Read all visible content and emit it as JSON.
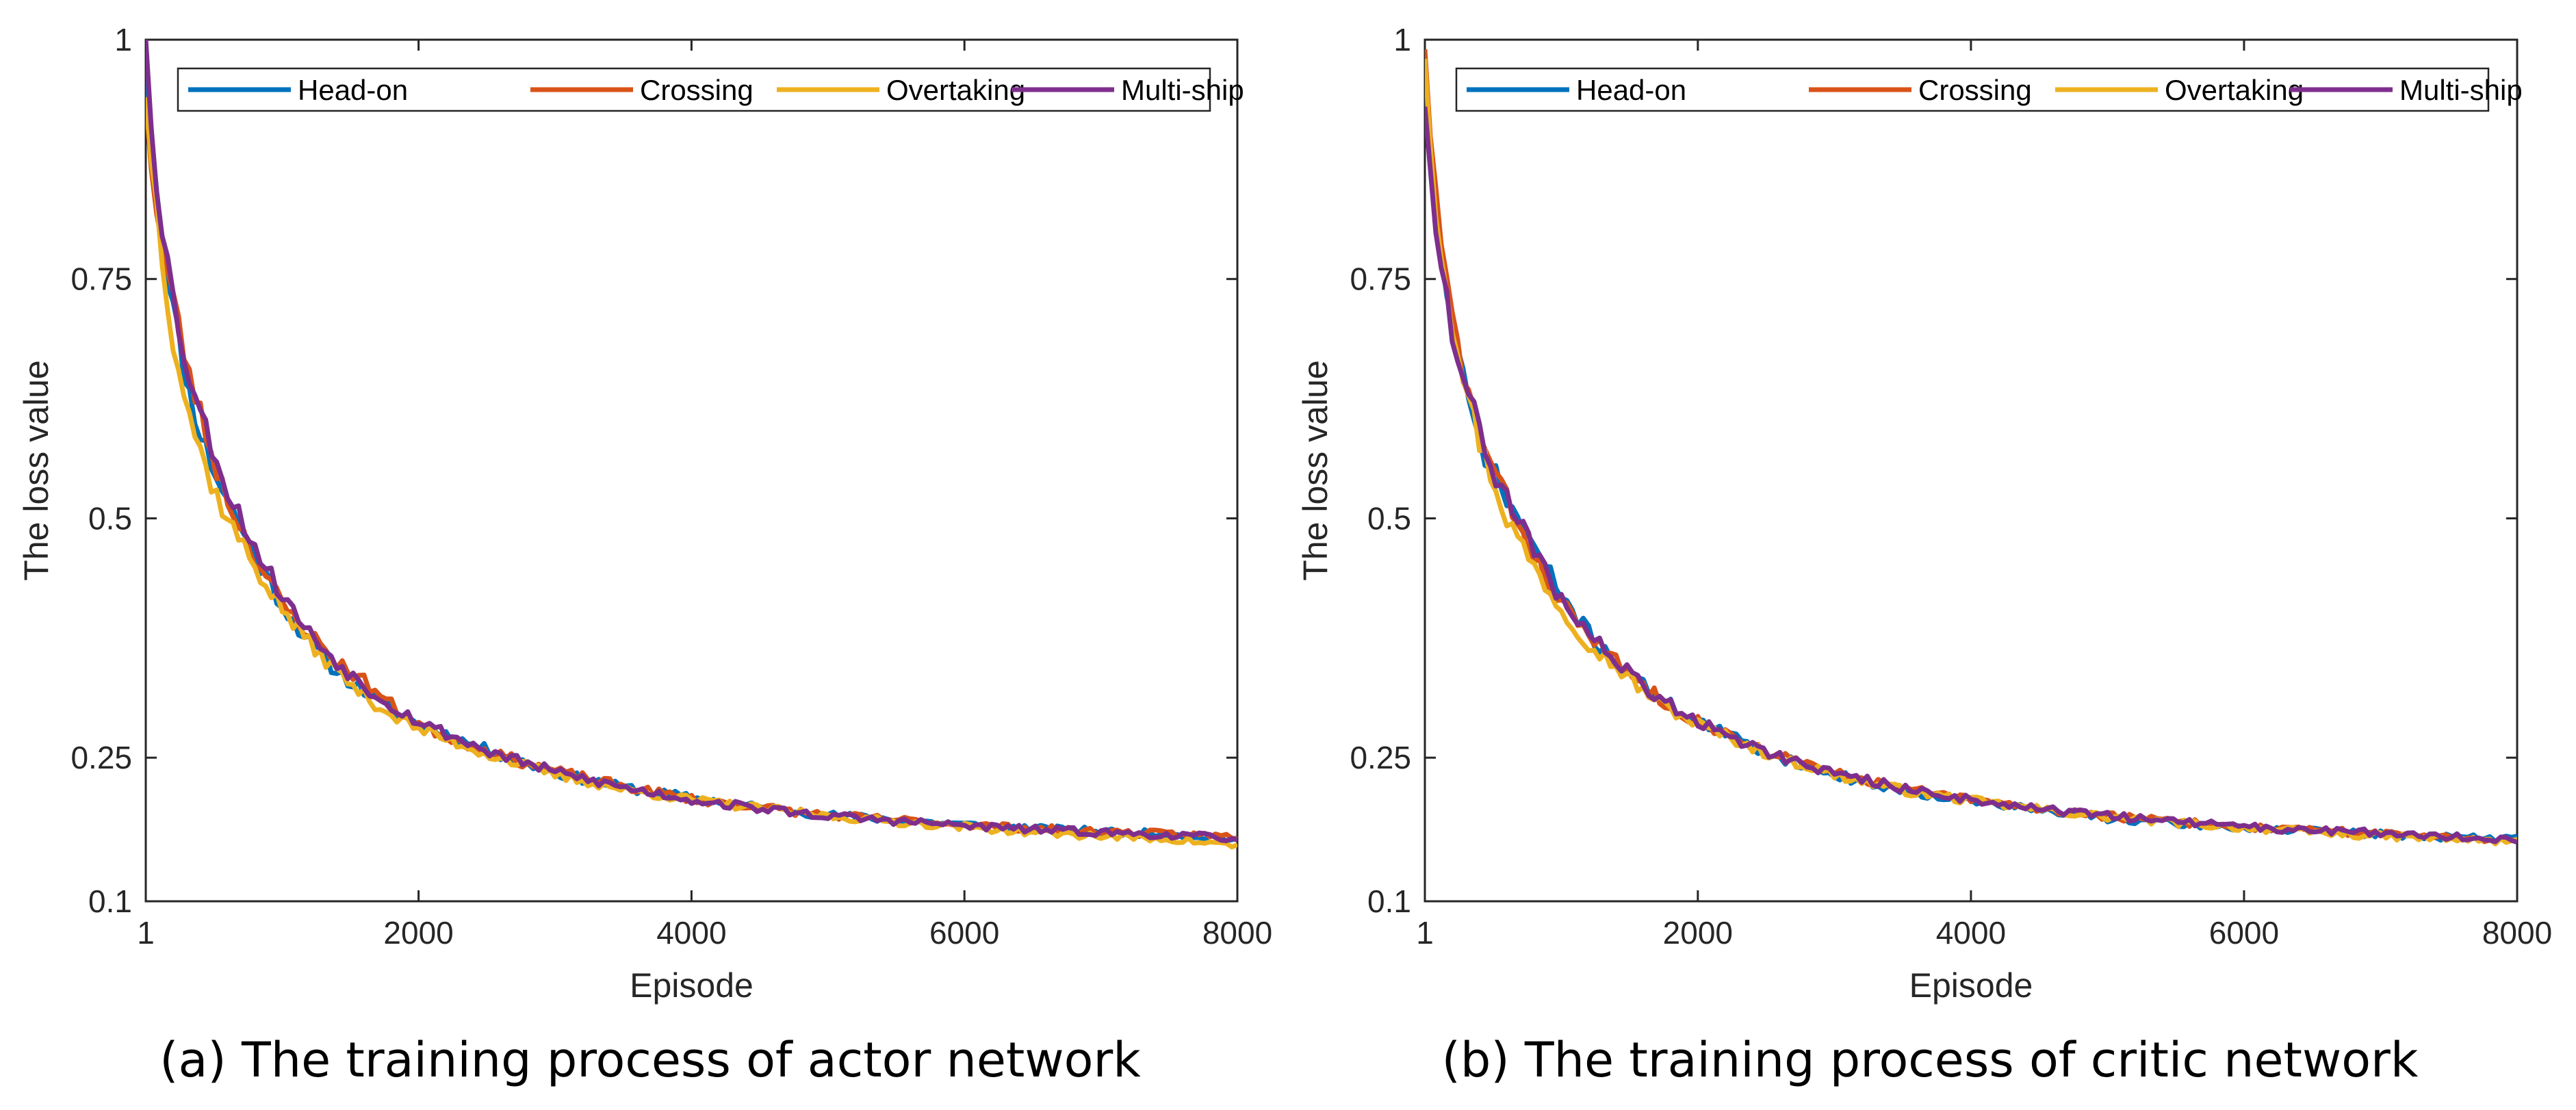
{
  "chart_data": [
    {
      "type": "line",
      "caption": "(a) The training process of actor network",
      "xlabel": "Episode",
      "ylabel": "The loss value",
      "xlim": [
        1,
        8000
      ],
      "ylim": [
        0.1,
        1
      ],
      "xticks": [
        1,
        2000,
        4000,
        6000,
        8000
      ],
      "xtick_labels": [
        "1",
        "2000",
        "4000",
        "6000",
        "8000"
      ],
      "yticks": [
        0.1,
        0.25,
        0.5,
        0.75,
        1
      ],
      "ytick_labels": [
        "0.1",
        "0.25",
        "0.5",
        "0.75",
        "1"
      ],
      "legend_position": "top",
      "series": [
        {
          "name": "Head-on",
          "color": "#0072BD",
          "seed": 11,
          "x": [
            1,
            50,
            100,
            200,
            300,
            400,
            500,
            600,
            800,
            1000,
            1200,
            1400,
            1600,
            1800,
            2000,
            2500,
            3000,
            3500,
            4000,
            4500,
            5000,
            5500,
            6000,
            6500,
            7000,
            7500,
            8000
          ],
          "values": [
            0.97,
            0.9,
            0.82,
            0.72,
            0.64,
            0.59,
            0.55,
            0.52,
            0.46,
            0.41,
            0.37,
            0.34,
            0.32,
            0.3,
            0.285,
            0.258,
            0.234,
            0.219,
            0.208,
            0.198,
            0.19,
            0.185,
            0.18,
            0.176,
            0.173,
            0.17,
            0.165
          ]
        },
        {
          "name": "Crossing",
          "color": "#D95319",
          "seed": 23,
          "x": [
            1,
            50,
            100,
            200,
            300,
            400,
            500,
            600,
            800,
            1000,
            1200,
            1400,
            1600,
            1800,
            2000,
            2500,
            3000,
            3500,
            4000,
            4500,
            5000,
            5500,
            6000,
            6500,
            7000,
            7500,
            8000
          ],
          "values": [
            0.94,
            0.86,
            0.8,
            0.73,
            0.66,
            0.61,
            0.56,
            0.52,
            0.46,
            0.41,
            0.38,
            0.35,
            0.33,
            0.305,
            0.285,
            0.256,
            0.236,
            0.22,
            0.207,
            0.198,
            0.19,
            0.185,
            0.18,
            0.176,
            0.173,
            0.17,
            0.168
          ]
        },
        {
          "name": "Overtaking",
          "color": "#EDB120",
          "seed": 37,
          "x": [
            1,
            50,
            100,
            200,
            300,
            400,
            500,
            600,
            800,
            1000,
            1200,
            1400,
            1600,
            1800,
            2000,
            2500,
            3000,
            3500,
            4000,
            4500,
            5000,
            5500,
            6000,
            6500,
            7000,
            7500,
            8000
          ],
          "values": [
            0.94,
            0.87,
            0.8,
            0.69,
            0.62,
            0.57,
            0.53,
            0.5,
            0.45,
            0.405,
            0.37,
            0.34,
            0.315,
            0.295,
            0.28,
            0.254,
            0.232,
            0.217,
            0.206,
            0.197,
            0.189,
            0.183,
            0.178,
            0.172,
            0.168,
            0.165,
            0.158
          ]
        },
        {
          "name": "Multi-ship",
          "color": "#7E2F8E",
          "seed": 53,
          "x": [
            1,
            50,
            100,
            200,
            300,
            400,
            500,
            600,
            800,
            1000,
            1200,
            1400,
            1600,
            1800,
            2000,
            2500,
            3000,
            3500,
            4000,
            4500,
            5000,
            5500,
            6000,
            6500,
            7000,
            7500,
            8000
          ],
          "values": [
            1.0,
            0.9,
            0.83,
            0.73,
            0.66,
            0.61,
            0.57,
            0.53,
            0.47,
            0.42,
            0.38,
            0.35,
            0.325,
            0.305,
            0.288,
            0.257,
            0.235,
            0.219,
            0.206,
            0.197,
            0.189,
            0.184,
            0.179,
            0.175,
            0.172,
            0.169,
            0.166
          ]
        }
      ]
    },
    {
      "type": "line",
      "caption": "(b) The training process of critic network",
      "xlabel": "Episode",
      "ylabel": "The loss value",
      "xlim": [
        1,
        8000
      ],
      "ylim": [
        0.1,
        1
      ],
      "xticks": [
        1,
        2000,
        4000,
        6000,
        8000
      ],
      "xtick_labels": [
        "1",
        "2000",
        "4000",
        "6000",
        "8000"
      ],
      "yticks": [
        0.1,
        0.25,
        0.5,
        0.75,
        1
      ],
      "ytick_labels": [
        "0.1",
        "0.25",
        "0.5",
        "0.75",
        "1"
      ],
      "legend_position": "top",
      "series": [
        {
          "name": "Head-on",
          "color": "#0072BD",
          "seed": 71,
          "x": [
            1,
            50,
            100,
            200,
            300,
            400,
            500,
            600,
            800,
            1000,
            1200,
            1400,
            1600,
            1800,
            2000,
            2500,
            3000,
            3500,
            4000,
            4500,
            5000,
            5500,
            6000,
            6500,
            7000,
            7500,
            8000
          ],
          "values": [
            0.96,
            0.88,
            0.8,
            0.7,
            0.63,
            0.58,
            0.55,
            0.52,
            0.47,
            0.42,
            0.38,
            0.35,
            0.325,
            0.305,
            0.288,
            0.255,
            0.232,
            0.216,
            0.205,
            0.195,
            0.187,
            0.181,
            0.177,
            0.173,
            0.17,
            0.167,
            0.165
          ]
        },
        {
          "name": "Crossing",
          "color": "#D95319",
          "seed": 83,
          "x": [
            1,
            50,
            100,
            200,
            300,
            400,
            500,
            600,
            800,
            1000,
            1200,
            1400,
            1600,
            1800,
            2000,
            2500,
            3000,
            3500,
            4000,
            4500,
            5000,
            5500,
            6000,
            6500,
            7000,
            7500,
            8000
          ],
          "values": [
            0.99,
            0.89,
            0.8,
            0.71,
            0.64,
            0.59,
            0.55,
            0.52,
            0.46,
            0.41,
            0.38,
            0.35,
            0.325,
            0.305,
            0.288,
            0.256,
            0.234,
            0.218,
            0.206,
            0.197,
            0.189,
            0.183,
            0.178,
            0.174,
            0.171,
            0.168,
            0.163
          ]
        },
        {
          "name": "Overtaking",
          "color": "#EDB120",
          "seed": 97,
          "x": [
            1,
            50,
            100,
            200,
            300,
            400,
            500,
            600,
            800,
            1000,
            1200,
            1400,
            1600,
            1800,
            2000,
            2500,
            3000,
            3500,
            4000,
            4500,
            5000,
            5500,
            6000,
            6500,
            7000,
            7500,
            8000
          ],
          "values": [
            0.98,
            0.88,
            0.8,
            0.71,
            0.64,
            0.58,
            0.54,
            0.5,
            0.45,
            0.405,
            0.37,
            0.345,
            0.32,
            0.3,
            0.285,
            0.255,
            0.232,
            0.216,
            0.205,
            0.196,
            0.188,
            0.182,
            0.177,
            0.172,
            0.168,
            0.165,
            0.162
          ]
        },
        {
          "name": "Multi-ship",
          "color": "#7E2F8E",
          "seed": 109,
          "x": [
            1,
            50,
            100,
            200,
            300,
            400,
            500,
            600,
            800,
            1000,
            1200,
            1400,
            1600,
            1800,
            2000,
            2500,
            3000,
            3500,
            4000,
            4500,
            5000,
            5500,
            6000,
            6500,
            7000,
            7500,
            8000
          ],
          "values": [
            0.93,
            0.86,
            0.78,
            0.7,
            0.64,
            0.59,
            0.55,
            0.52,
            0.465,
            0.415,
            0.38,
            0.35,
            0.325,
            0.305,
            0.288,
            0.256,
            0.234,
            0.218,
            0.206,
            0.197,
            0.189,
            0.183,
            0.178,
            0.174,
            0.171,
            0.168,
            0.163
          ]
        }
      ]
    }
  ]
}
